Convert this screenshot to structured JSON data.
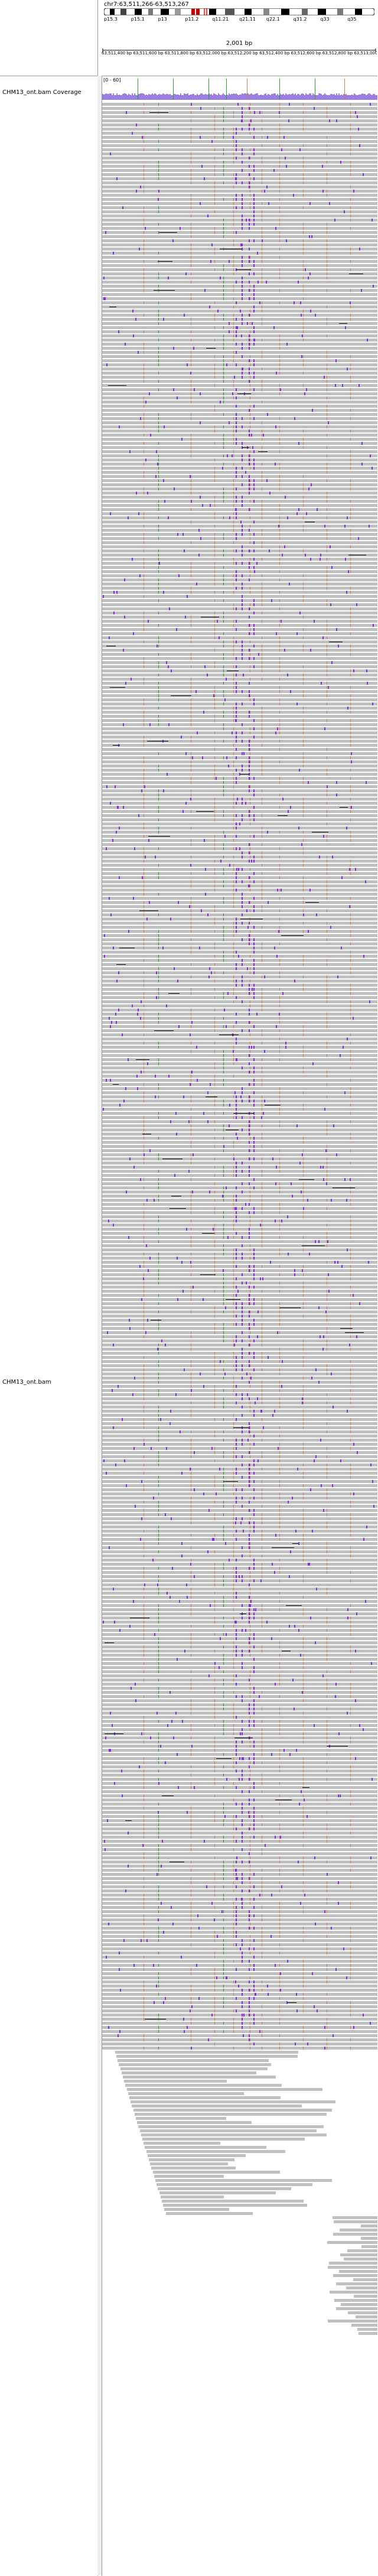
{
  "locus": "chr7:63,511,266-63,513,267",
  "bands": [
    "p15.3",
    "p15.1",
    "p13",
    "p11.2",
    "q11.21",
    "q21.11",
    "q22.1",
    "q31.2",
    "q33",
    "q35"
  ],
  "ruler_span": "2,001 bp",
  "ruler_ticks": "63,511,400 bp   63,511,600 bp   63,511,800 bp   63,512,000 bp   63,512,200 bp   63,512,400 bp   63,512,600 bp   63,512,800 bp   63,513,000 bp   63,513,200 bp",
  "tracks": {
    "coverage_name": "CHM13_ont.bam Coverage",
    "alignment_name": "CHM13_ont.bam",
    "coverage_range": "[0 - 60]"
  },
  "colors": {
    "read": "#c0c0c0",
    "insertion": "#8a2be2",
    "mismatch": "#d27a4a",
    "coverage": "#9b7ee0"
  }
}
